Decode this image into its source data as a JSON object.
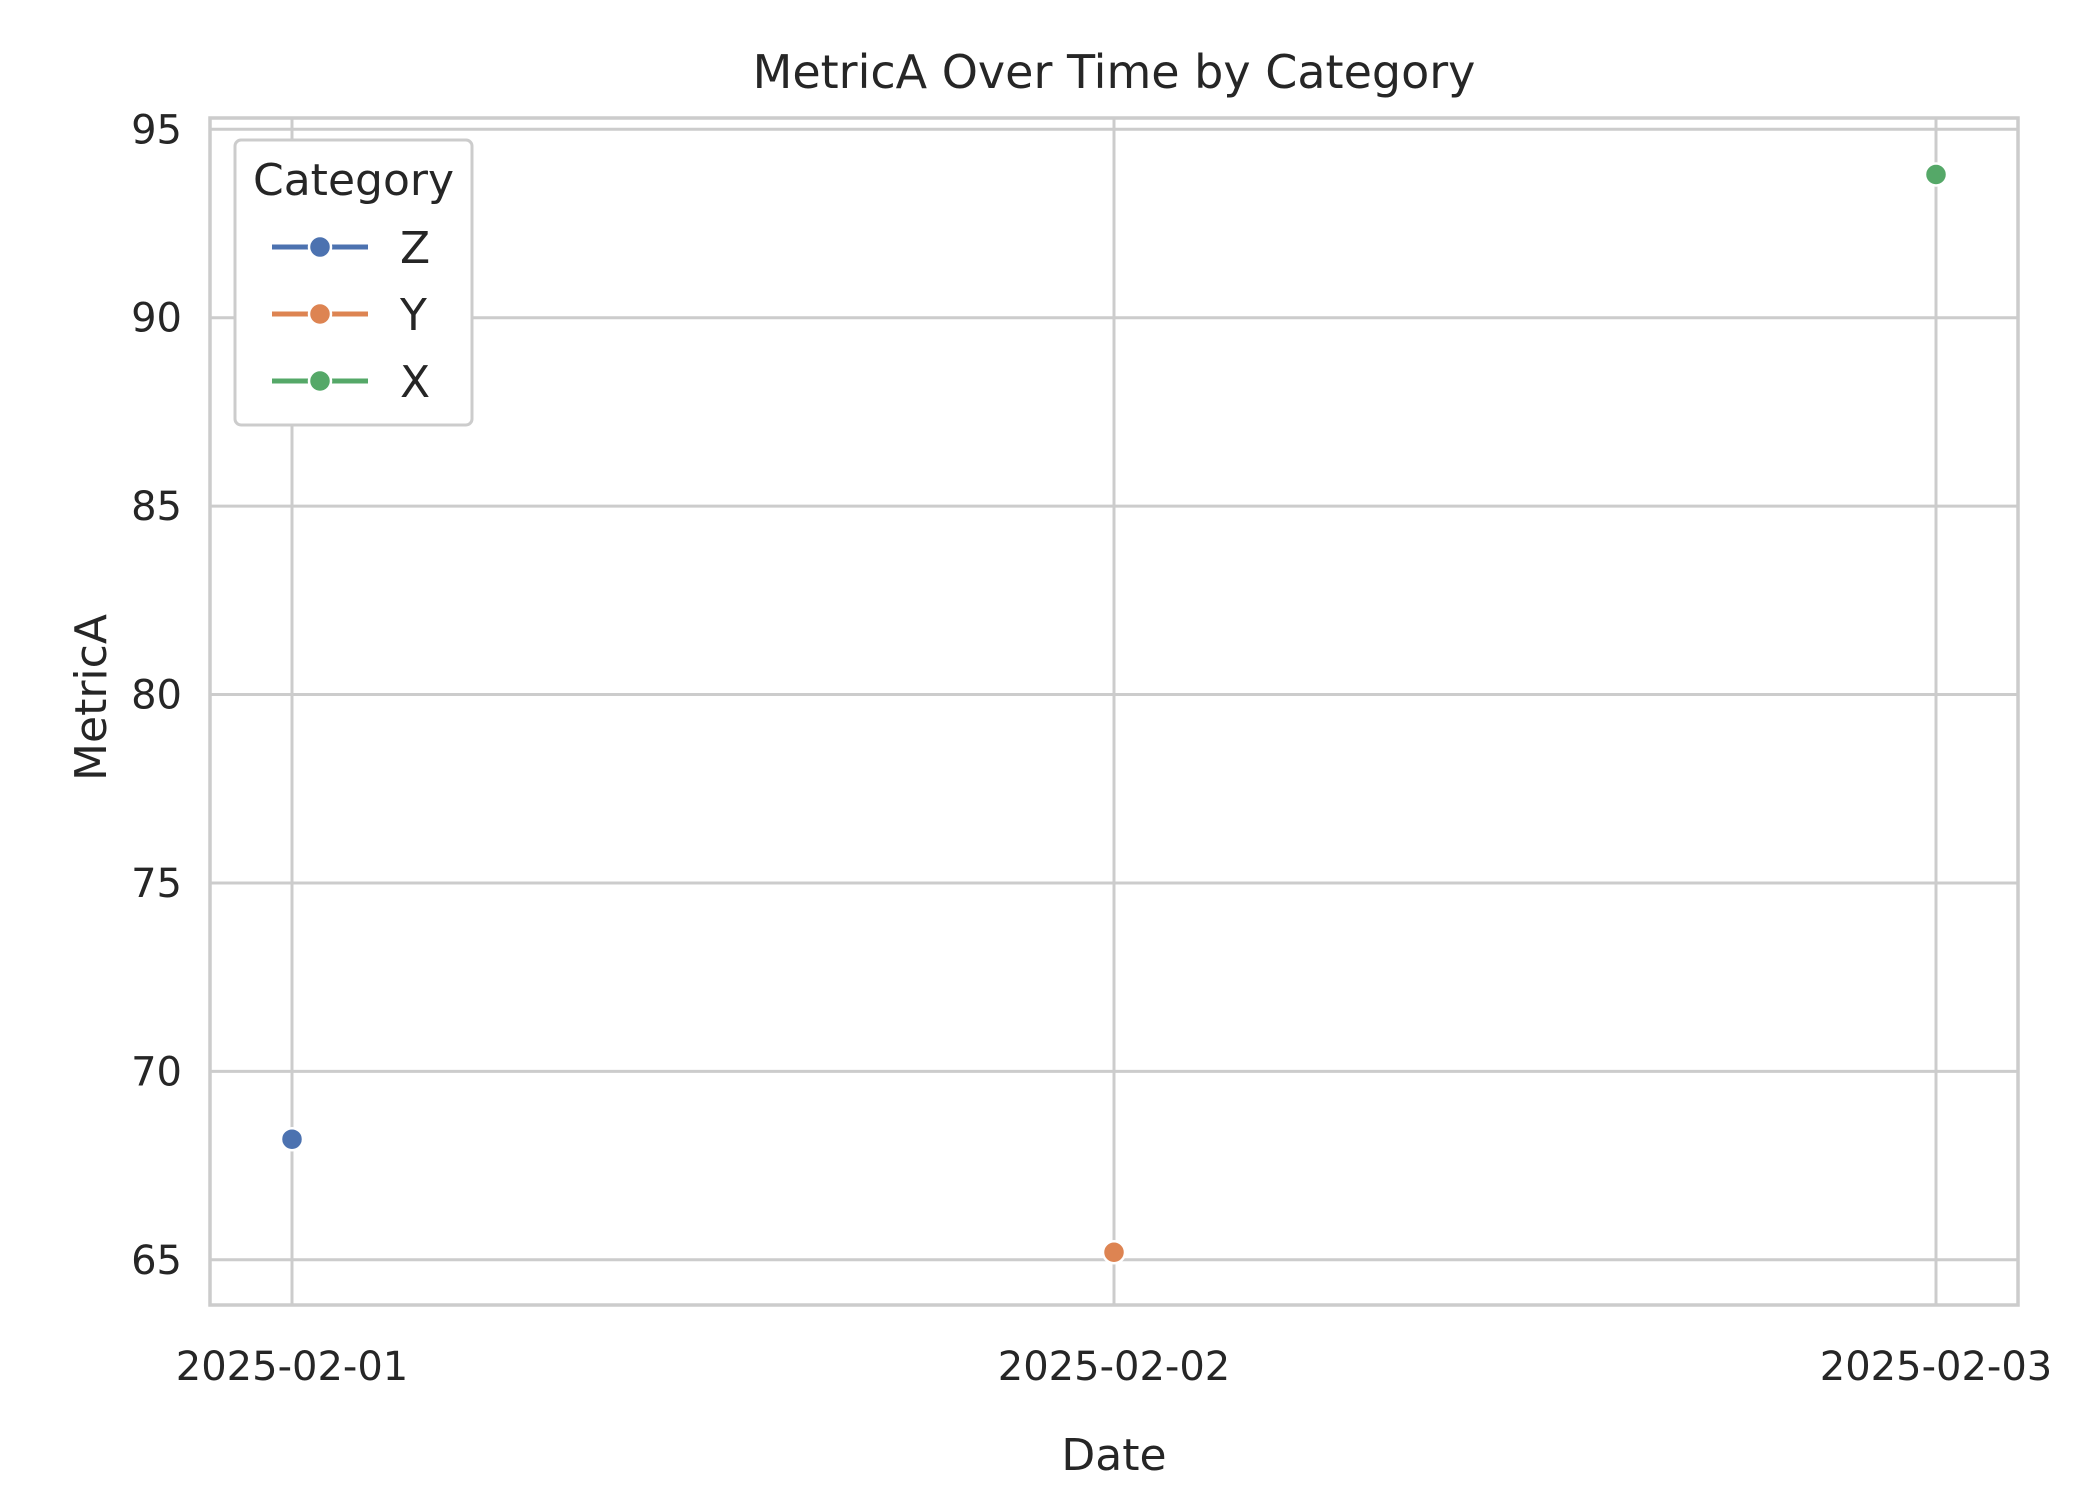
{
  "chart_data": {
    "type": "line",
    "title": "MetricA Over Time by Category",
    "xlabel": "Date",
    "ylabel": "MetricA",
    "x": [
      "2025-02-01",
      "2025-02-02",
      "2025-02-03"
    ],
    "x_tick_labels": [
      "2025-02-01",
      "2025-02-02",
      "2025-02-03"
    ],
    "ylim": [
      63.8,
      95.3
    ],
    "yticks": [
      65,
      70,
      75,
      80,
      85,
      90,
      95
    ],
    "grid": true,
    "legend": {
      "title": "Category",
      "placement": "top-left"
    },
    "series": [
      {
        "name": "Z",
        "color": "#4c72b0",
        "points": [
          {
            "x": "2025-02-01",
            "y": 68.2
          }
        ]
      },
      {
        "name": "Y",
        "color": "#dd8452",
        "points": [
          {
            "x": "2025-02-02",
            "y": 65.2
          }
        ]
      },
      {
        "name": "X",
        "color": "#55a868",
        "points": [
          {
            "x": "2025-02-03",
            "y": 93.8
          }
        ]
      }
    ]
  }
}
